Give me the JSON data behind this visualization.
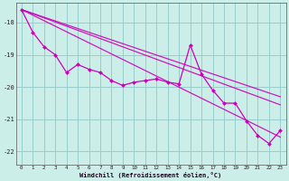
{
  "xlabel": "Windchill (Refroidissement éolien,°C)",
  "x": [
    0,
    1,
    2,
    3,
    4,
    5,
    6,
    7,
    8,
    9,
    10,
    11,
    12,
    13,
    14,
    15,
    16,
    17,
    18,
    19,
    20,
    21,
    22,
    23
  ],
  "y_main": [
    -17.6,
    -18.3,
    -18.75,
    -19.0,
    -19.55,
    -19.3,
    -19.45,
    -19.55,
    -19.8,
    -19.95,
    -19.85,
    -19.8,
    -19.75,
    -19.85,
    -19.9,
    -18.7,
    -19.6,
    -20.1,
    -20.5,
    -20.5,
    -21.05,
    -21.5,
    -21.75,
    -21.35
  ],
  "line_color": "#cc00bb",
  "bg_color": "#cceee8",
  "grid_color": "#99cccc",
  "ylim": [
    -22.4,
    -17.4
  ],
  "xlim": [
    -0.5,
    23.5
  ],
  "yticks": [
    -22,
    -21,
    -20,
    -19,
    -18
  ],
  "xticks": [
    0,
    1,
    2,
    3,
    4,
    5,
    6,
    7,
    8,
    9,
    10,
    11,
    12,
    13,
    14,
    15,
    16,
    17,
    18,
    19,
    20,
    21,
    22,
    23
  ],
  "trend_lines": [
    {
      "x0": 0,
      "y0": -17.6,
      "x1": 23,
      "y1": -21.55
    },
    {
      "x0": 0,
      "y0": -17.6,
      "x1": 23,
      "y1": -20.55
    },
    {
      "x0": 0,
      "y0": -17.6,
      "x1": 23,
      "y1": -20.3
    }
  ]
}
